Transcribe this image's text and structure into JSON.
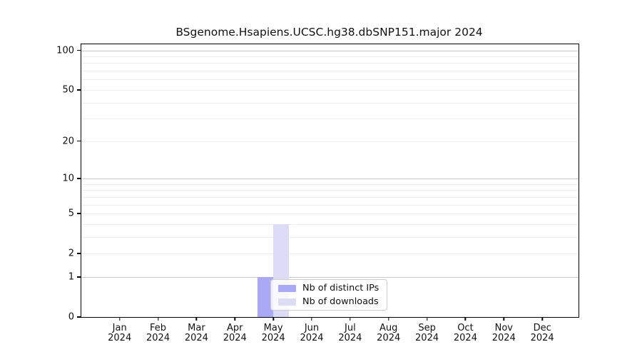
{
  "title": "BSgenome.Hsapiens.UCSC.hg38.dbSNP151.major 2024",
  "chart_data": {
    "type": "bar",
    "title": "BSgenome.Hsapiens.UCSC.hg38.dbSNP151.major 2024",
    "categories": [
      "Jan",
      "Feb",
      "Mar",
      "Apr",
      "May",
      "Jun",
      "Jul",
      "Aug",
      "Sep",
      "Oct",
      "Nov",
      "Dec"
    ],
    "category_year": "2024",
    "series": [
      {
        "name": "Nb of distinct IPs",
        "color": "#a9a9f5",
        "values": [
          0,
          0,
          0,
          0,
          1,
          0,
          0,
          0,
          0,
          0,
          0,
          0
        ]
      },
      {
        "name": "Nb of downloads",
        "color": "#dcdcf6",
        "values": [
          0,
          0,
          0,
          0,
          4,
          0,
          0,
          0,
          0,
          0,
          0,
          0
        ]
      }
    ],
    "xlabel": "",
    "ylabel": "",
    "yscale": "log1p",
    "ylim": [
      0,
      112
    ],
    "yticks": [
      0,
      1,
      2,
      5,
      10,
      20,
      50,
      100
    ],
    "major_gridlines": [
      1,
      10,
      100
    ],
    "minor_gridlines": [
      2,
      3,
      4,
      5,
      6,
      7,
      8,
      9,
      20,
      30,
      40,
      50,
      60,
      70,
      80,
      90
    ],
    "grid": "on",
    "legend_position": "lower-center-inside"
  },
  "colors": {
    "axis": "#000000",
    "major_grid": "#c8c8c8",
    "minor_grid": "#ededed",
    "legend_border": "#cccccc",
    "background": "#ffffff"
  }
}
